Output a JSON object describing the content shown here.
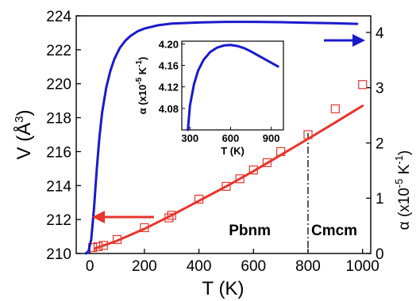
{
  "chart_data": [
    {
      "type": "scatter",
      "title": "",
      "xlabel": "T (K)",
      "ylabel_left": "V (Å3)",
      "ylabel_right": "α (x10-5 K-1)",
      "xlim": [
        -50,
        1030
      ],
      "ylim_left": [
        210,
        224
      ],
      "ylim_right": [
        0,
        4.3
      ],
      "x_ticks": [
        0,
        200,
        400,
        600,
        800,
        1000
      ],
      "y_ticks_left": [
        210,
        212,
        214,
        216,
        218,
        220,
        222,
        224
      ],
      "y_ticks_right": [
        0,
        1,
        2,
        3,
        4
      ],
      "phase_boundary_x": 800,
      "phase_labels": [
        "Pbnm",
        "Cmcm"
      ],
      "grid": false,
      "series": [
        {
          "marker": "open-square",
          "axis": "left",
          "color": "#e8352c",
          "x": [
            10,
            30,
            50,
            100,
            200,
            290,
            300,
            400,
            500,
            550,
            600,
            650,
            700,
            800,
            900,
            1000
          ],
          "y": [
            210.35,
            210.4,
            210.48,
            210.82,
            211.52,
            212.1,
            212.25,
            213.2,
            213.95,
            214.4,
            214.92,
            215.35,
            216.0,
            217.0,
            218.52,
            219.95
          ]
        },
        {
          "style": "line",
          "axis": "left",
          "color": "#e8352c",
          "x": [
            20,
            100,
            200,
            300,
            400,
            500,
            600,
            700,
            800,
            900,
            1000
          ],
          "y": [
            210.3,
            210.75,
            211.45,
            212.25,
            213.1,
            213.95,
            214.85,
            215.8,
            216.75,
            217.72,
            218.7
          ]
        },
        {
          "style": "line",
          "axis": "right",
          "color": "#1a1acc",
          "x": [
            -15,
            -5,
            5,
            15,
            25,
            35,
            45,
            60,
            75,
            90,
            110,
            130,
            150,
            175,
            200,
            250,
            300,
            400,
            500,
            600,
            700,
            800,
            900,
            980
          ],
          "y": [
            0,
            0.04,
            0.25,
            0.8,
            1.5,
            2.1,
            2.55,
            3.0,
            3.3,
            3.52,
            3.72,
            3.85,
            3.94,
            4.02,
            4.07,
            4.13,
            4.16,
            4.18,
            4.19,
            4.19,
            4.185,
            4.175,
            4.165,
            4.155
          ]
        }
      ],
      "annotations": [
        {
          "type": "arrow",
          "direction": "left",
          "color": "#e8352c",
          "meaning": "red data read on left axis"
        },
        {
          "type": "arrow",
          "direction": "right",
          "color": "#1a1acc",
          "meaning": "blue curve read on right axis"
        }
      ]
    },
    {
      "type": "line",
      "title": "",
      "xlabel": "T (K)",
      "ylabel": "α (x10-5 K-1)",
      "xlim": [
        240,
        990
      ],
      "ylim": [
        4.04,
        4.205
      ],
      "x_ticks": [
        300,
        600,
        900
      ],
      "y_ticks": [
        4.08,
        4.12,
        4.16,
        4.2
      ],
      "series": [
        {
          "color": "#1a1acc",
          "x": [
            285,
            300,
            330,
            360,
            400,
            450,
            500,
            550,
            600,
            650,
            700,
            750,
            800,
            850,
            900,
            950
          ],
          "y": [
            4.04,
            4.085,
            4.125,
            4.15,
            4.17,
            4.185,
            4.193,
            4.197,
            4.198,
            4.196,
            4.192,
            4.186,
            4.179,
            4.172,
            4.165,
            4.158
          ]
        }
      ]
    }
  ]
}
